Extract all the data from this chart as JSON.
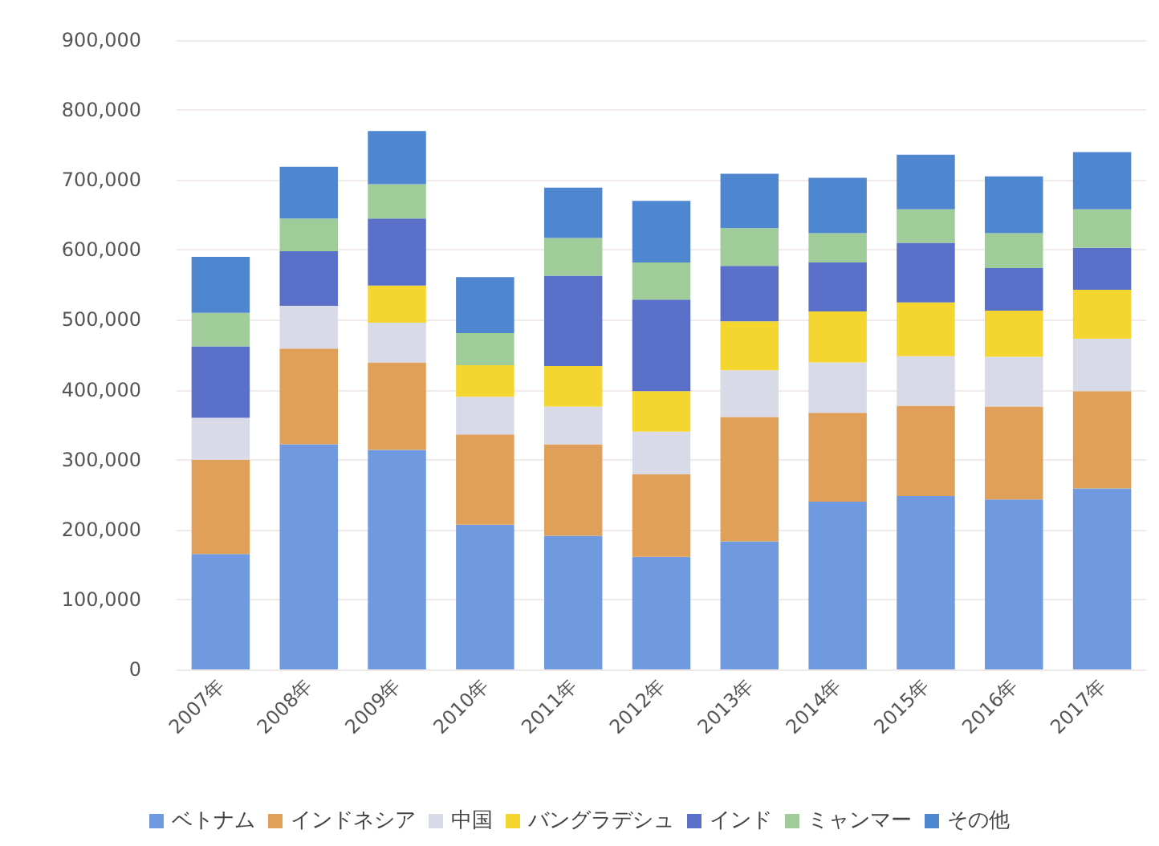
{
  "chart_data": {
    "type": "bar",
    "stacked": true,
    "grid": "y",
    "legend": "bottom",
    "categories": [
      "2007年",
      "2008年",
      "2009年",
      "2010年",
      "2011年",
      "2012年",
      "2013年",
      "2014年",
      "2015年",
      "2016年",
      "2017年"
    ],
    "ylim": [
      0,
      900000
    ],
    "yticks": [
      0,
      {
        "value": 100000,
        "label": "100,000"
      },
      {
        "value": 200000,
        "label": "200,000"
      },
      {
        "value": 300000,
        "label": "300,000"
      },
      {
        "value": 400000,
        "label": "400,000"
      },
      {
        "value": 500000,
        "label": "500,000"
      },
      {
        "value": 600000,
        "label": "600,000"
      },
      {
        "value": 700000,
        "label": "700,000"
      },
      {
        "value": 800000,
        "label": "800,000"
      },
      {
        "value": 900000,
        "label": "900,000"
      }
    ],
    "series": [
      {
        "name": "ベトナム",
        "color": "#6f9ae0",
        "values": [
          165000,
          322000,
          314000,
          207000,
          191000,
          161000,
          183000,
          240000,
          248000,
          243000,
          259000
        ]
      },
      {
        "name": "インドネシア",
        "color": "#e0a05a",
        "values": [
          135000,
          137000,
          125000,
          129000,
          131000,
          118000,
          178000,
          127000,
          129000,
          133000,
          139000
        ]
      },
      {
        "name": "中国",
        "color": "#d8dae8",
        "values": [
          60000,
          61000,
          57000,
          54000,
          54000,
          61000,
          67000,
          72000,
          71000,
          71000,
          75000
        ]
      },
      {
        "name": "バングラデシュ",
        "color": "#f5d530",
        "values": [
          0,
          0,
          53000,
          45000,
          58000,
          58000,
          70000,
          73000,
          77000,
          66000,
          70000
        ]
      },
      {
        "name": "インド",
        "color": "#5a6fc8",
        "values": [
          102000,
          78000,
          96000,
          0,
          129000,
          131000,
          79000,
          70000,
          85000,
          61000,
          60000
        ]
      },
      {
        "name": "ミャンマー",
        "color": "#9fcc98",
        "values": [
          48000,
          47000,
          49000,
          46000,
          54000,
          53000,
          54000,
          42000,
          48000,
          50000,
          55000
        ]
      },
      {
        "name": "その他",
        "color": "#4f86d0",
        "values": [
          80000,
          74000,
          76000,
          80000,
          72000,
          88000,
          78000,
          79000,
          78000,
          81000,
          82000
        ]
      }
    ]
  }
}
